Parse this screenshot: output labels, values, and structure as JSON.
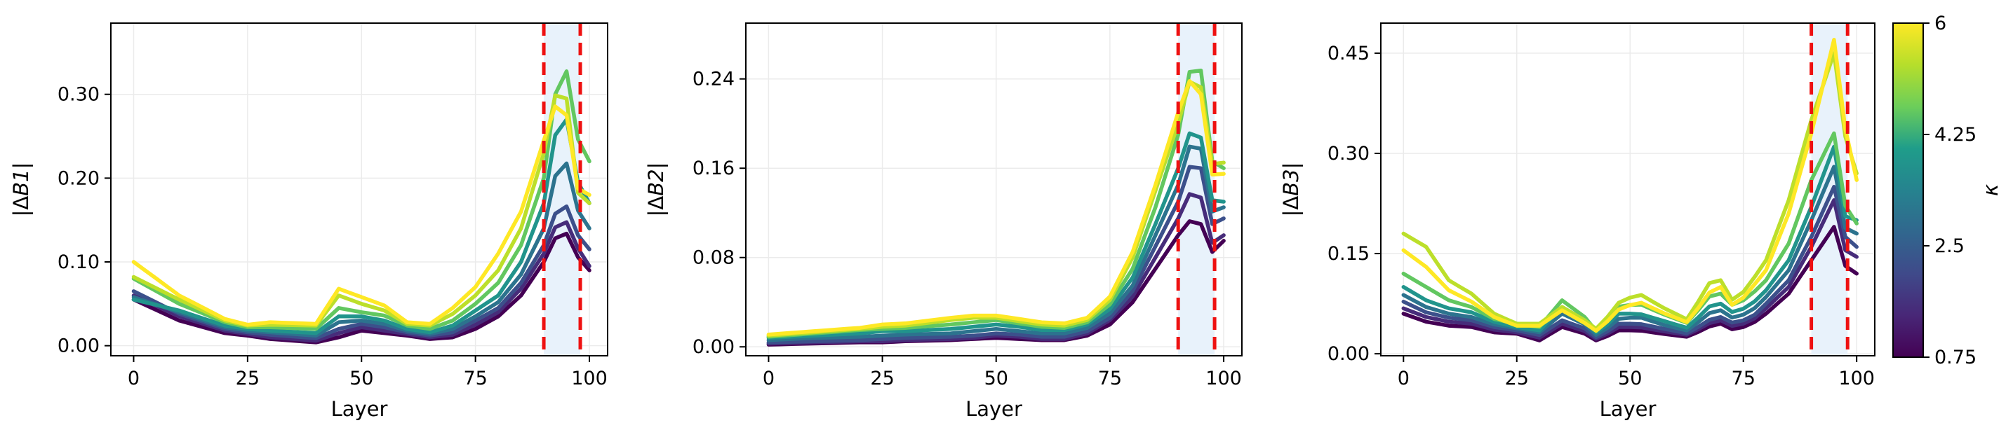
{
  "chart_data": [
    {
      "type": "line",
      "title": "",
      "xlabel": "Layer",
      "ylabel_sym": "B1",
      "xlim": [
        -5,
        104
      ],
      "ylim": [
        -0.012,
        0.385
      ],
      "xticks": [
        0,
        25,
        50,
        75,
        100
      ],
      "yticks": [
        0.0,
        0.1,
        0.2,
        0.3
      ],
      "ytick_labels": [
        "0.00",
        "0.10",
        "0.20",
        "0.30"
      ],
      "grid": true,
      "highlight_band": [
        90,
        98
      ],
      "anchors": [
        0,
        10,
        20,
        25,
        30,
        40,
        45,
        50,
        55,
        60,
        65,
        70,
        75,
        80,
        85,
        90,
        94,
        98,
        100
      ],
      "series": [
        {
          "kappa": 0.75,
          "values": [
            0.055,
            0.03,
            0.015,
            0.012,
            0.008,
            0.004,
            0.01,
            0.018,
            0.015,
            0.012,
            0.008,
            0.01,
            0.02,
            0.035,
            0.06,
            0.1,
            0.145,
            0.1,
            0.09
          ]
        },
        {
          "kappa": 1.5,
          "values": [
            0.06,
            0.035,
            0.018,
            0.014,
            0.01,
            0.006,
            0.015,
            0.022,
            0.018,
            0.014,
            0.01,
            0.013,
            0.025,
            0.04,
            0.068,
            0.11,
            0.16,
            0.11,
            0.095
          ]
        },
        {
          "kappa": 2.2,
          "values": [
            0.065,
            0.038,
            0.02,
            0.016,
            0.013,
            0.009,
            0.02,
            0.026,
            0.022,
            0.016,
            0.012,
            0.016,
            0.03,
            0.045,
            0.075,
            0.12,
            0.18,
            0.125,
            0.115
          ]
        },
        {
          "kappa": 3.0,
          "values": [
            0.058,
            0.04,
            0.022,
            0.018,
            0.016,
            0.012,
            0.028,
            0.03,
            0.026,
            0.018,
            0.014,
            0.02,
            0.035,
            0.052,
            0.085,
            0.14,
            0.24,
            0.15,
            0.14
          ]
        },
        {
          "kappa": 3.8,
          "values": [
            0.055,
            0.042,
            0.024,
            0.02,
            0.018,
            0.015,
            0.035,
            0.035,
            0.03,
            0.02,
            0.016,
            0.024,
            0.042,
            0.06,
            0.1,
            0.17,
            0.3,
            0.18,
            0.17
          ]
        },
        {
          "kappa": 4.6,
          "values": [
            0.08,
            0.05,
            0.028,
            0.022,
            0.022,
            0.02,
            0.045,
            0.04,
            0.036,
            0.024,
            0.02,
            0.03,
            0.05,
            0.075,
            0.12,
            0.2,
            0.36,
            0.23,
            0.22
          ]
        },
        {
          "kappa": 5.4,
          "values": [
            0.082,
            0.055,
            0.03,
            0.024,
            0.025,
            0.024,
            0.06,
            0.05,
            0.042,
            0.026,
            0.024,
            0.038,
            0.06,
            0.09,
            0.14,
            0.23,
            0.34,
            0.16,
            0.17
          ]
        },
        {
          "kappa": 6.0,
          "values": [
            0.1,
            0.06,
            0.032,
            0.025,
            0.028,
            0.026,
            0.068,
            0.058,
            0.048,
            0.028,
            0.026,
            0.045,
            0.07,
            0.11,
            0.16,
            0.245,
            0.31,
            0.17,
            0.18
          ]
        }
      ]
    },
    {
      "type": "line",
      "title": "",
      "xlabel": "Layer",
      "ylabel_sym": "B2",
      "xlim": [
        -5,
        104
      ],
      "ylim": [
        -0.008,
        0.29
      ],
      "xticks": [
        0,
        25,
        50,
        75,
        100
      ],
      "yticks": [
        0.0,
        0.08,
        0.16,
        0.24
      ],
      "ytick_labels": [
        "0.00",
        "0.08",
        "0.16",
        "0.24"
      ],
      "grid": true,
      "highlight_band": [
        90,
        98
      ],
      "anchors": [
        0,
        10,
        20,
        25,
        30,
        40,
        45,
        50,
        55,
        60,
        65,
        70,
        75,
        80,
        85,
        90,
        94,
        98,
        100
      ],
      "series": [
        {
          "kappa": 0.75,
          "values": [
            0.002,
            0.003,
            0.004,
            0.004,
            0.005,
            0.006,
            0.007,
            0.008,
            0.007,
            0.006,
            0.006,
            0.01,
            0.02,
            0.04,
            0.07,
            0.1,
            0.12,
            0.08,
            0.095
          ]
        },
        {
          "kappa": 1.5,
          "values": [
            0.003,
            0.004,
            0.005,
            0.005,
            0.006,
            0.007,
            0.008,
            0.01,
            0.009,
            0.007,
            0.007,
            0.012,
            0.024,
            0.045,
            0.08,
            0.115,
            0.15,
            0.085,
            0.1
          ]
        },
        {
          "kappa": 2.2,
          "values": [
            0.004,
            0.005,
            0.006,
            0.007,
            0.008,
            0.009,
            0.01,
            0.012,
            0.011,
            0.009,
            0.009,
            0.014,
            0.026,
            0.05,
            0.09,
            0.13,
            0.18,
            0.1,
            0.115
          ]
        },
        {
          "kappa": 3.0,
          "values": [
            0.006,
            0.008,
            0.009,
            0.01,
            0.011,
            0.012,
            0.014,
            0.016,
            0.014,
            0.012,
            0.012,
            0.017,
            0.03,
            0.055,
            0.1,
            0.145,
            0.2,
            0.11,
            0.125
          ]
        },
        {
          "kappa": 3.8,
          "values": [
            0.008,
            0.01,
            0.012,
            0.014,
            0.014,
            0.016,
            0.018,
            0.02,
            0.018,
            0.015,
            0.015,
            0.02,
            0.034,
            0.062,
            0.11,
            0.16,
            0.21,
            0.12,
            0.13
          ]
        },
        {
          "kappa": 4.6,
          "values": [
            0.009,
            0.012,
            0.015,
            0.016,
            0.017,
            0.02,
            0.022,
            0.024,
            0.021,
            0.018,
            0.017,
            0.022,
            0.038,
            0.07,
            0.125,
            0.19,
            0.28,
            0.15,
            0.16
          ]
        },
        {
          "kappa": 5.4,
          "values": [
            0.01,
            0.013,
            0.016,
            0.018,
            0.019,
            0.024,
            0.026,
            0.026,
            0.023,
            0.02,
            0.019,
            0.024,
            0.042,
            0.08,
            0.14,
            0.2,
            0.26,
            0.15,
            0.165
          ]
        },
        {
          "kappa": 6.0,
          "values": [
            0.011,
            0.014,
            0.017,
            0.02,
            0.021,
            0.026,
            0.028,
            0.028,
            0.025,
            0.022,
            0.021,
            0.026,
            0.045,
            0.085,
            0.145,
            0.21,
            0.255,
            0.14,
            0.155
          ]
        }
      ]
    },
    {
      "type": "line",
      "title": "",
      "xlabel": "Layer",
      "ylabel_sym": "B3",
      "xlim": [
        -5,
        104
      ],
      "ylim": [
        -0.003,
        0.495
      ],
      "xticks": [
        0,
        25,
        50,
        75,
        100
      ],
      "yticks": [
        0.0,
        0.15,
        0.3,
        0.45
      ],
      "ytick_labels": [
        "0.00",
        "0.15",
        "0.30",
        "0.45"
      ],
      "grid": true,
      "highlight_band": [
        90,
        98
      ],
      "anchors": [
        0,
        5,
        10,
        15,
        20,
        25,
        30,
        35,
        40,
        43,
        47,
        52,
        57,
        63,
        67,
        70,
        73,
        77,
        80,
        85,
        90,
        95,
        98,
        100
      ],
      "series": [
        {
          "kappa": 0.75,
          "values": [
            0.06,
            0.048,
            0.042,
            0.04,
            0.032,
            0.03,
            0.02,
            0.04,
            0.03,
            0.018,
            0.035,
            0.035,
            0.03,
            0.025,
            0.04,
            0.045,
            0.035,
            0.045,
            0.06,
            0.09,
            0.14,
            0.19,
            0.12,
            0.12
          ]
        },
        {
          "kappa": 1.5,
          "values": [
            0.068,
            0.055,
            0.048,
            0.045,
            0.036,
            0.032,
            0.024,
            0.045,
            0.034,
            0.02,
            0.04,
            0.04,
            0.034,
            0.028,
            0.045,
            0.05,
            0.04,
            0.05,
            0.068,
            0.1,
            0.16,
            0.23,
            0.14,
            0.145
          ]
        },
        {
          "kappa": 2.2,
          "values": [
            0.078,
            0.062,
            0.054,
            0.05,
            0.04,
            0.035,
            0.028,
            0.05,
            0.038,
            0.022,
            0.045,
            0.045,
            0.038,
            0.03,
            0.05,
            0.055,
            0.045,
            0.055,
            0.075,
            0.11,
            0.175,
            0.25,
            0.16,
            0.16
          ]
        },
        {
          "kappa": 3.0,
          "values": [
            0.088,
            0.07,
            0.06,
            0.055,
            0.044,
            0.038,
            0.032,
            0.06,
            0.044,
            0.025,
            0.052,
            0.055,
            0.044,
            0.034,
            0.06,
            0.065,
            0.052,
            0.065,
            0.085,
            0.125,
            0.2,
            0.28,
            0.17,
            0.18
          ]
        },
        {
          "kappa": 3.8,
          "values": [
            0.1,
            0.08,
            0.068,
            0.062,
            0.048,
            0.04,
            0.035,
            0.07,
            0.05,
            0.028,
            0.06,
            0.06,
            0.05,
            0.038,
            0.07,
            0.075,
            0.06,
            0.075,
            0.095,
            0.14,
            0.22,
            0.31,
            0.185,
            0.2
          ]
        },
        {
          "kappa": 4.6,
          "values": [
            0.12,
            0.1,
            0.08,
            0.07,
            0.052,
            0.045,
            0.04,
            0.08,
            0.055,
            0.03,
            0.07,
            0.075,
            0.06,
            0.045,
            0.085,
            0.09,
            0.07,
            0.09,
            0.11,
            0.165,
            0.26,
            0.33,
            0.2,
            0.195
          ]
        },
        {
          "kappa": 5.4,
          "values": [
            0.18,
            0.16,
            0.11,
            0.09,
            0.06,
            0.045,
            0.045,
            0.07,
            0.05,
            0.035,
            0.075,
            0.09,
            0.07,
            0.05,
            0.105,
            0.11,
            0.075,
            0.11,
            0.14,
            0.23,
            0.35,
            0.45,
            0.3,
            0.27
          ]
        },
        {
          "kappa": 6.0,
          "values": [
            0.155,
            0.13,
            0.095,
            0.078,
            0.055,
            0.042,
            0.042,
            0.065,
            0.046,
            0.032,
            0.065,
            0.078,
            0.062,
            0.046,
            0.09,
            0.1,
            0.068,
            0.1,
            0.125,
            0.21,
            0.33,
            0.47,
            0.31,
            0.26
          ]
        }
      ]
    }
  ],
  "colorbar": {
    "label": "κ",
    "min": 0.75,
    "max": 6,
    "ticks": [
      0.75,
      2.5,
      4.25,
      6
    ],
    "tick_labels": [
      "0.75",
      "2.5",
      "4.25",
      "6"
    ],
    "colormap": "viridis",
    "colors": [
      "#440154",
      "#482777",
      "#3f4a8a",
      "#31678e",
      "#26838f",
      "#1f9d8a",
      "#6cce5a",
      "#b6de2b",
      "#fee825"
    ]
  },
  "highlight_line_color": "#ee1111",
  "highlight_band_color": "#e8f2fb"
}
